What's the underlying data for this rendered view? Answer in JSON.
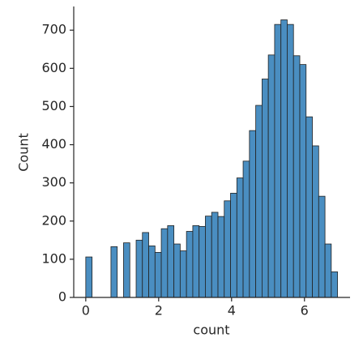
{
  "chart_data": {
    "type": "histogram",
    "x_label": "count",
    "y_label": "Count",
    "bins": [
      0,
      0.173,
      0.345,
      0.518,
      0.691,
      0.863,
      1.036,
      1.209,
      1.382,
      1.554,
      1.727,
      1.9,
      2.072,
      2.245,
      2.418,
      2.59,
      2.763,
      2.936,
      3.109,
      3.281,
      3.454,
      3.627,
      3.799,
      3.972,
      4.145,
      4.317,
      4.49,
      4.663,
      4.836,
      5.008,
      5.181,
      5.354,
      5.526,
      5.699,
      5.872,
      6.044,
      6.217,
      6.39,
      6.563,
      6.735,
      6.908
    ],
    "values": [
      106,
      0,
      0,
      0,
      133,
      0,
      143,
      0,
      150,
      170,
      135,
      118,
      180,
      188,
      140,
      122,
      173,
      188,
      186,
      213,
      223,
      212,
      253,
      273,
      313,
      357,
      437,
      503,
      572,
      635,
      715,
      727,
      715,
      633,
      610,
      473,
      397,
      265,
      140,
      67
    ],
    "color": "#4a8ec1",
    "xlim": [
      -0.33,
      7.25
    ],
    "ylim": [
      0,
      762
    ],
    "xticks": [
      0,
      2,
      4,
      6
    ],
    "yticks": [
      0,
      100,
      200,
      300,
      400,
      500,
      600,
      700
    ]
  }
}
